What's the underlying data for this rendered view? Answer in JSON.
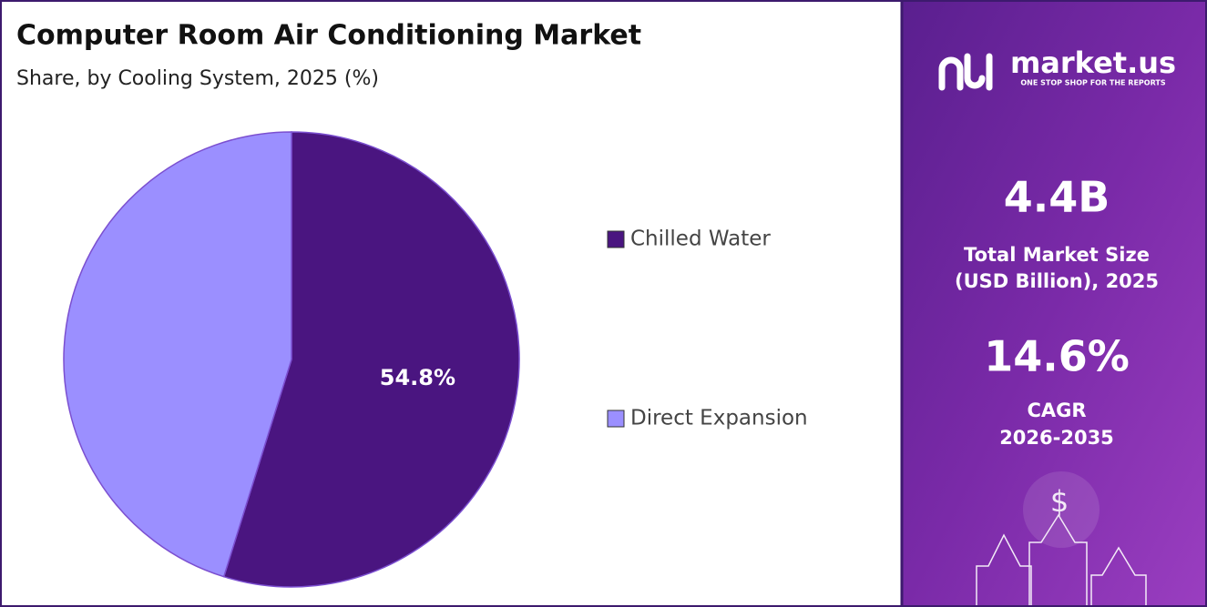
{
  "chart_data": {
    "type": "pie",
    "title": "Computer Room Air Conditioning Market",
    "subtitle": "Share, by Cooling System, 2025 (%)",
    "categories": [
      "Chilled Water",
      "Direct Expansion"
    ],
    "values": [
      54.8,
      45.2
    ],
    "value_labels": [
      "54.8%",
      null
    ],
    "colors": [
      "#4a1580",
      "#9b8fff"
    ],
    "legend": "right"
  },
  "panel": {
    "logo": "market.us",
    "tagline": "ONE STOP SHOP FOR THE REPORTS",
    "market_size": "4.4B",
    "market_size_label": [
      "Total Market Size",
      "(USD Billion), 2025"
    ],
    "cagr": "14.6%",
    "cagr_label": [
      "CAGR",
      "2026-2035"
    ]
  }
}
